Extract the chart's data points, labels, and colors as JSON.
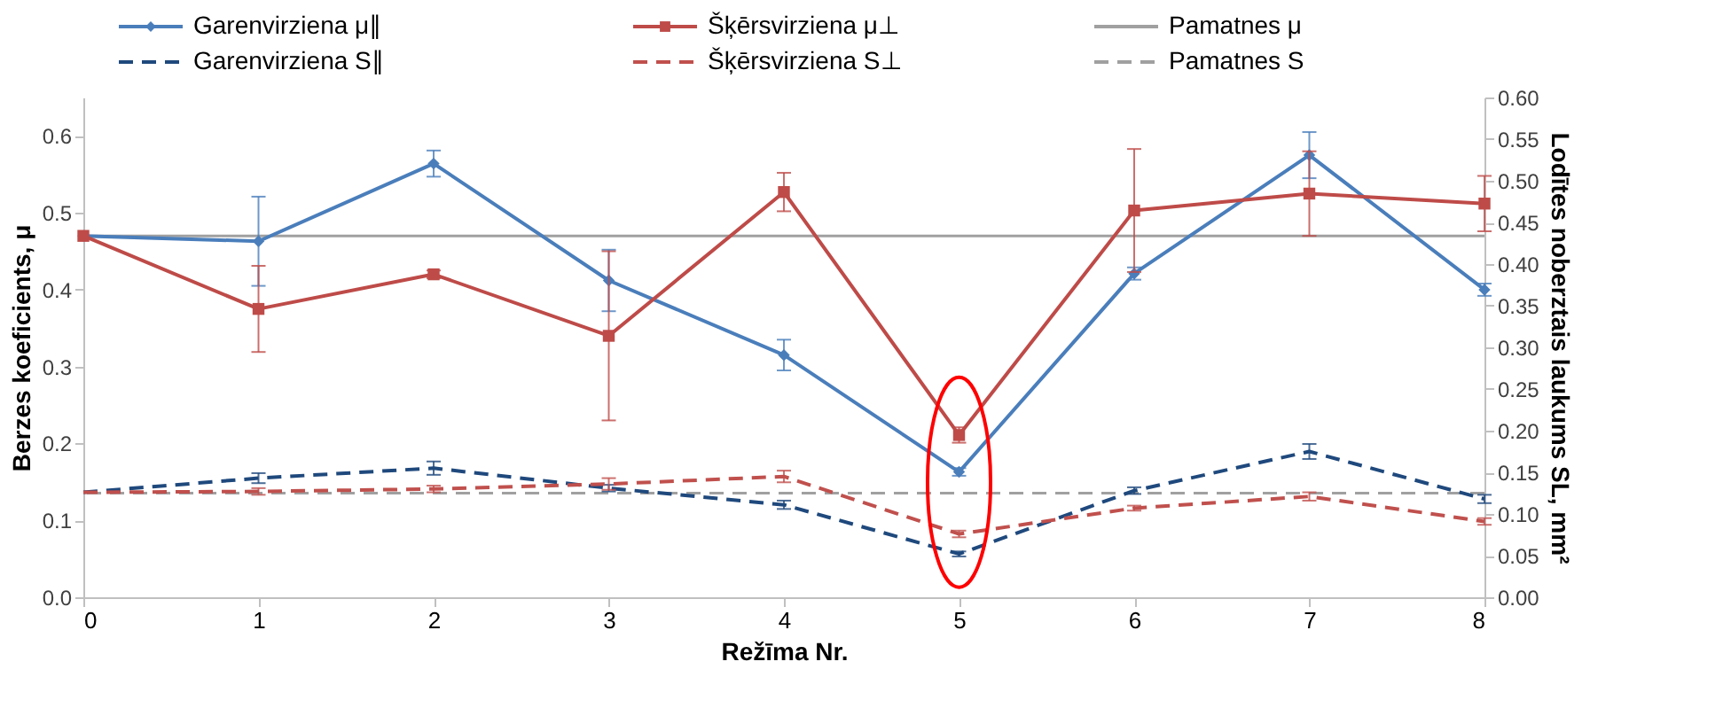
{
  "chart_data": {
    "type": "line",
    "xlabel": "Režīma Nr.",
    "ylabel": "Berzes koeficients, μ",
    "y2label": "Lodītes noberztais laukums  SL, mm²",
    "x": [
      0,
      1,
      2,
      3,
      4,
      5,
      6,
      7,
      8
    ],
    "xlim": [
      0,
      8
    ],
    "xticks": [
      0,
      1,
      2,
      3,
      4,
      5,
      6,
      7,
      8
    ],
    "ylim": [
      0,
      0.65
    ],
    "yticks": [
      {
        "value": 0,
        "label": "0.0"
      },
      0.1,
      0.2,
      0.3,
      0.4,
      0.5,
      0.6
    ],
    "y2lim": [
      0,
      0.6
    ],
    "y2ticks": [
      {
        "value": 0,
        "label": "0.00"
      },
      0.05,
      {
        "value": 0.1,
        "label": "0.10"
      },
      0.15,
      {
        "value": 0.2,
        "label": "0.20"
      },
      0.25,
      {
        "value": 0.3,
        "label": "0.30"
      },
      0.35,
      {
        "value": 0.4,
        "label": "0.40"
      },
      0.45,
      {
        "value": 0.5,
        "label": "0.50"
      },
      0.55,
      {
        "value": 0.6,
        "label": "0.60"
      }
    ],
    "grid": false,
    "legend": "top",
    "series": [
      {
        "name": "Garenvirziena  μ∥",
        "color": "#4a7ebb",
        "axis": "y",
        "marker": "diamond",
        "line_style": "solid",
        "values": [
          0.47,
          0.463,
          0.564,
          0.412,
          0.315,
          0.163,
          0.421,
          0.575,
          0.4
        ],
        "errors": [
          null,
          0.058,
          0.017,
          0.04,
          0.02,
          0.005,
          0.008,
          0.03,
          0.008
        ]
      },
      {
        "name": "Šķērsvirziena μ⊥",
        "color": "#be4b48",
        "axis": "y",
        "marker": "square",
        "line_style": "solid",
        "values": [
          0.47,
          0.375,
          0.42,
          0.34,
          0.527,
          0.211,
          0.503,
          0.525,
          0.512
        ],
        "errors": [
          null,
          0.056,
          0.005,
          0.11,
          0.025,
          0.01,
          0.08,
          0.055,
          0.036
        ]
      },
      {
        "name": "Garenvirziena S∥",
        "color": "#1f497d",
        "axis": "y2",
        "marker": "none",
        "line_style": "dashed",
        "values": [
          0.126,
          0.143,
          0.155,
          0.131,
          0.111,
          0.052,
          0.128,
          0.175,
          0.118
        ],
        "errors": [
          null,
          0.006,
          0.008,
          0.004,
          0.005,
          0.003,
          0.004,
          0.009,
          0.005
        ]
      },
      {
        "name": "Šķērsvirziena S⊥",
        "color": "#c0504d",
        "axis": "y2",
        "marker": "none",
        "line_style": "dashed",
        "values": [
          0.126,
          0.127,
          0.13,
          0.136,
          0.145,
          0.076,
          0.107,
          0.121,
          0.091
        ],
        "errors": [
          null,
          0.004,
          0.004,
          0.007,
          0.007,
          0.004,
          0.003,
          0.005,
          0.004
        ]
      }
    ],
    "ref_lines": [
      {
        "axis": "y",
        "value": 0.47,
        "label": "Pamatnes μ",
        "color": "#a0a0a0",
        "line_style": "solid"
      },
      {
        "axis": "y2",
        "value": 0.125,
        "label": "Pamatnes S",
        "color": "#a0a0a0",
        "line_style": "dashed"
      }
    ]
  }
}
